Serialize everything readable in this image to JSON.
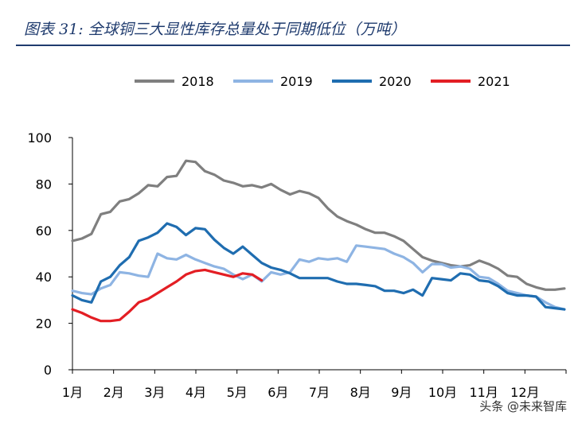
{
  "header": {
    "figure_no": "图表 31:",
    "title_text": "全球铜三大显性库存总量处于同期低位（万吨）"
  },
  "watermark": "头条 @未来智库",
  "chart_data": {
    "type": "line",
    "xlabel": "",
    "ylabel": "",
    "ylim": [
      0,
      100
    ],
    "yticks": [
      0,
      20,
      40,
      60,
      80,
      100
    ],
    "xlim": [
      0,
      12
    ],
    "month_labels": [
      "1月",
      "2月",
      "3月",
      "4月",
      "5月",
      "6月",
      "7月",
      "8月",
      "9月",
      "10月",
      "11月",
      "12月"
    ],
    "grid": false,
    "legend": "top",
    "series": [
      {
        "name": "2018",
        "color": "#7f7f7f",
        "x": [
          0,
          0.23,
          0.46,
          0.69,
          0.92,
          1.15,
          1.38,
          1.61,
          1.84,
          2.07,
          2.3,
          2.53,
          2.76,
          2.99,
          3.22,
          3.45,
          3.68,
          3.91,
          4.14,
          4.37,
          4.6,
          4.83,
          5.06,
          5.29,
          5.52,
          5.75,
          5.98,
          6.21,
          6.44,
          6.67,
          6.9,
          7.13,
          7.36,
          7.59,
          7.82,
          8.05,
          8.28,
          8.51,
          8.74,
          8.97,
          9.2,
          9.43,
          9.66,
          9.89,
          10.12,
          10.35,
          10.58,
          10.81,
          11.04,
          11.27,
          11.5,
          11.73,
          11.96
        ],
        "values": [
          55.5,
          56.5,
          58.5,
          67,
          68,
          72.5,
          73.5,
          76,
          79.5,
          79,
          83,
          83.5,
          90,
          89.5,
          85.5,
          84,
          81.5,
          80.5,
          79,
          79.5,
          78.5,
          80,
          77.5,
          75.5,
          77,
          76,
          74,
          69.5,
          66,
          64,
          62.5,
          60.5,
          59,
          59,
          57.5,
          55.5,
          52,
          48.5,
          47,
          46,
          45,
          44.5,
          45,
          47,
          45.5,
          43.5,
          40.5,
          40,
          37,
          35.5,
          34.5,
          34.5,
          35
        ]
      },
      {
        "name": "2019",
        "color": "#8eb4e3",
        "x": [
          0,
          0.23,
          0.46,
          0.69,
          0.92,
          1.15,
          1.38,
          1.61,
          1.84,
          2.07,
          2.3,
          2.53,
          2.76,
          2.99,
          3.22,
          3.45,
          3.68,
          3.91,
          4.14,
          4.37,
          4.6,
          4.83,
          5.06,
          5.29,
          5.52,
          5.75,
          5.98,
          6.21,
          6.44,
          6.67,
          6.9,
          7.13,
          7.36,
          7.59,
          7.82,
          8.05,
          8.28,
          8.51,
          8.74,
          8.97,
          9.2,
          9.43,
          9.66,
          9.89,
          10.12,
          10.35,
          10.58,
          10.81,
          11.04,
          11.27,
          11.5,
          11.73,
          11.96
        ],
        "values": [
          34,
          33,
          32.5,
          35,
          36.5,
          42,
          41.5,
          40.5,
          40,
          50,
          48,
          47.5,
          49.5,
          47.5,
          46,
          44.5,
          43.5,
          41,
          39,
          41,
          38,
          42,
          41,
          42,
          47.5,
          46.5,
          48,
          47.5,
          48,
          46.5,
          53.5,
          53,
          52.5,
          52,
          50,
          48.5,
          46,
          42,
          45.5,
          45.5,
          44,
          44.5,
          43.5,
          40,
          39.5,
          37,
          34,
          33,
          32,
          31.5,
          29,
          27,
          26
        ]
      },
      {
        "name": "2020",
        "color": "#1f6db0",
        "x": [
          0,
          0.23,
          0.46,
          0.69,
          0.92,
          1.15,
          1.38,
          1.61,
          1.84,
          2.07,
          2.3,
          2.53,
          2.76,
          2.99,
          3.22,
          3.45,
          3.68,
          3.91,
          4.14,
          4.37,
          4.6,
          4.83,
          5.06,
          5.29,
          5.52,
          5.75,
          5.98,
          6.21,
          6.44,
          6.67,
          6.9,
          7.13,
          7.36,
          7.59,
          7.82,
          8.05,
          8.28,
          8.51,
          8.74,
          8.97,
          9.2,
          9.43,
          9.66,
          9.89,
          10.12,
          10.35,
          10.58,
          10.81,
          11.04,
          11.27,
          11.5,
          11.73,
          11.96
        ],
        "values": [
          32,
          30,
          29,
          38,
          40,
          45,
          48.5,
          55.5,
          57,
          59,
          63,
          61.5,
          58,
          61,
          60.5,
          56,
          52.5,
          50,
          53,
          49.5,
          46,
          44,
          43,
          41.5,
          39.5,
          39.5,
          39.5,
          39.5,
          38,
          37,
          37,
          36.5,
          36,
          34,
          34,
          33,
          34.5,
          32,
          39.5,
          39,
          38.5,
          41.5,
          41,
          38.5,
          38,
          36,
          33,
          32,
          32,
          31.5,
          27,
          26.5,
          26
        ]
      },
      {
        "name": "2021",
        "color": "#e31e24",
        "x": [
          0,
          0.23,
          0.46,
          0.69,
          0.92,
          1.15,
          1.38,
          1.61,
          1.84,
          2.07,
          2.3,
          2.53,
          2.76,
          2.99,
          3.22,
          3.45,
          3.68,
          3.91,
          4.14,
          4.37,
          4.6
        ],
        "values": [
          26,
          24.5,
          22.5,
          21,
          21,
          21.5,
          25,
          29,
          30.5,
          33,
          35.5,
          38,
          41,
          42.5,
          43,
          42,
          41,
          40,
          41.5,
          41,
          38.5
        ]
      }
    ]
  }
}
